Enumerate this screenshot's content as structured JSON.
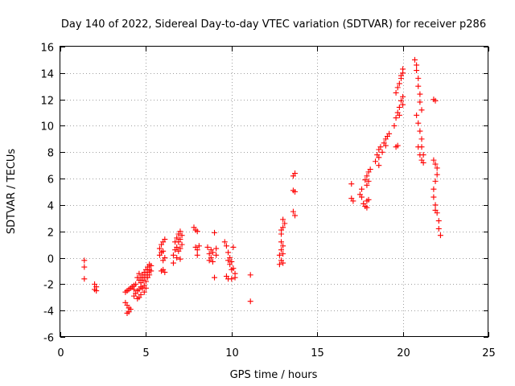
{
  "chart_data": {
    "type": "scatter",
    "title": "Day 140 of 2022, Sidereal Day-to-day VTEC variation (SDTVAR) for receiver p286",
    "xlabel": "GPS time / hours",
    "ylabel": "SDTVAR / TECUs",
    "xlim": [
      0,
      25
    ],
    "ylim": [
      -6,
      16
    ],
    "xticks": [
      "0",
      "5",
      "10",
      "15",
      "20",
      "25"
    ],
    "yticks": [
      "-6",
      "-4",
      "-2",
      "0",
      "2",
      "4",
      "6",
      "8",
      "10",
      "12",
      "14",
      "16"
    ],
    "grid": true,
    "marker": "+",
    "color": "#ff0000",
    "series": [
      {
        "name": "SDTVAR",
        "points": [
          [
            1.4,
            -0.2
          ],
          [
            1.4,
            -0.7
          ],
          [
            1.4,
            -1.6
          ],
          [
            2.0,
            -2.0
          ],
          [
            2.1,
            -2.2
          ],
          [
            2.1,
            -2.5
          ],
          [
            2.0,
            -2.4
          ],
          [
            3.8,
            -2.6
          ],
          [
            3.9,
            -2.5
          ],
          [
            4.0,
            -2.4
          ],
          [
            4.1,
            -2.3
          ],
          [
            4.2,
            -2.2
          ],
          [
            4.3,
            -2.1
          ],
          [
            4.3,
            -2.4
          ],
          [
            4.4,
            -2.0
          ],
          [
            3.8,
            -3.4
          ],
          [
            3.9,
            -3.6
          ],
          [
            4.0,
            -3.8
          ],
          [
            4.0,
            -4.1
          ],
          [
            4.1,
            -3.9
          ],
          [
            3.9,
            -4.2
          ],
          [
            4.3,
            -2.9
          ],
          [
            4.4,
            -2.7
          ],
          [
            4.5,
            -3.1
          ],
          [
            4.5,
            -2.5
          ],
          [
            4.6,
            -2.4
          ],
          [
            4.6,
            -3.0
          ],
          [
            4.7,
            -2.2
          ],
          [
            4.7,
            -2.8
          ],
          [
            4.5,
            -1.5
          ],
          [
            4.6,
            -1.7
          ],
          [
            4.6,
            -1.2
          ],
          [
            4.7,
            -1.5
          ],
          [
            4.7,
            -1.9
          ],
          [
            4.8,
            -1.3
          ],
          [
            4.8,
            -1.7
          ],
          [
            4.8,
            -2.3
          ],
          [
            4.9,
            -1.1
          ],
          [
            4.9,
            -1.5
          ],
          [
            4.9,
            -2.1
          ],
          [
            5.0,
            -0.9
          ],
          [
            5.0,
            -1.3
          ],
          [
            5.0,
            -1.8
          ],
          [
            5.1,
            -0.7
          ],
          [
            5.1,
            -1.1
          ],
          [
            5.1,
            -1.5
          ],
          [
            5.2,
            -0.5
          ],
          [
            5.2,
            -0.9
          ],
          [
            5.2,
            -1.3
          ],
          [
            5.3,
            -0.6
          ],
          [
            5.3,
            -1.0
          ],
          [
            4.9,
            -2.6
          ],
          [
            5.0,
            -2.3
          ],
          [
            5.8,
            0.7
          ],
          [
            5.8,
            0.2
          ],
          [
            5.9,
            1.0
          ],
          [
            5.9,
            0.4
          ],
          [
            6.0,
            1.2
          ],
          [
            6.0,
            0.5
          ],
          [
            6.1,
            1.4
          ],
          [
            6.1,
            0.0
          ],
          [
            6.0,
            -0.9
          ],
          [
            6.1,
            -1.1
          ],
          [
            5.9,
            -1.0
          ],
          [
            6.0,
            -0.2
          ],
          [
            6.6,
            0.2
          ],
          [
            6.6,
            -0.4
          ],
          [
            6.7,
            0.6
          ],
          [
            6.7,
            1.2
          ],
          [
            6.8,
            1.5
          ],
          [
            6.8,
            0.8
          ],
          [
            6.8,
            0.0
          ],
          [
            6.9,
            1.8
          ],
          [
            6.9,
            1.2
          ],
          [
            6.9,
            0.5
          ],
          [
            7.0,
            2.0
          ],
          [
            7.0,
            1.4
          ],
          [
            7.0,
            0.7
          ],
          [
            7.0,
            -0.1
          ],
          [
            7.1,
            1.7
          ],
          [
            7.1,
            1.0
          ],
          [
            7.8,
            2.3
          ],
          [
            7.9,
            2.1
          ],
          [
            8.0,
            2.0
          ],
          [
            7.9,
            0.8
          ],
          [
            8.0,
            0.6
          ],
          [
            8.1,
            0.9
          ],
          [
            8.0,
            0.2
          ],
          [
            8.6,
            0.8
          ],
          [
            8.7,
            0.3
          ],
          [
            8.7,
            -0.2
          ],
          [
            8.8,
            0.6
          ],
          [
            8.8,
            0.0
          ],
          [
            8.9,
            0.4
          ],
          [
            8.9,
            -0.3
          ],
          [
            9.0,
            1.9
          ],
          [
            9.1,
            0.7
          ],
          [
            9.1,
            0.2
          ],
          [
            9.0,
            -1.5
          ],
          [
            9.6,
            1.2
          ],
          [
            9.7,
            0.9
          ],
          [
            9.8,
            0.4
          ],
          [
            9.8,
            -0.2
          ],
          [
            9.9,
            0.0
          ],
          [
            9.9,
            -0.5
          ],
          [
            10.0,
            -0.3
          ],
          [
            10.0,
            -0.9
          ],
          [
            10.1,
            0.8
          ],
          [
            10.1,
            -0.8
          ],
          [
            10.2,
            -1.2
          ],
          [
            9.7,
            -1.4
          ],
          [
            9.8,
            -1.6
          ],
          [
            10.0,
            -1.6
          ],
          [
            10.2,
            -1.5
          ],
          [
            11.1,
            -1.3
          ],
          [
            11.1,
            -3.3
          ],
          [
            12.8,
            -0.5
          ],
          [
            12.8,
            0.2
          ],
          [
            12.9,
            -0.2
          ],
          [
            12.9,
            0.6
          ],
          [
            12.9,
            1.2
          ],
          [
            13.0,
            0.9
          ],
          [
            13.0,
            0.3
          ],
          [
            13.0,
            -0.4
          ],
          [
            12.9,
            1.8
          ],
          [
            13.0,
            2.3
          ],
          [
            13.0,
            2.9
          ],
          [
            13.1,
            2.6
          ],
          [
            12.9,
            2.1
          ],
          [
            13.6,
            6.2
          ],
          [
            13.7,
            6.4
          ],
          [
            13.6,
            5.1
          ],
          [
            13.7,
            5.0
          ],
          [
            13.6,
            3.5
          ],
          [
            13.7,
            3.2
          ],
          [
            17.0,
            5.6
          ],
          [
            17.0,
            4.5
          ],
          [
            17.1,
            4.3
          ],
          [
            17.5,
            4.8
          ],
          [
            17.6,
            4.6
          ],
          [
            17.6,
            5.2
          ],
          [
            17.7,
            4.1
          ],
          [
            17.8,
            3.9
          ],
          [
            17.9,
            3.8
          ],
          [
            17.9,
            4.3
          ],
          [
            17.8,
            5.9
          ],
          [
            17.9,
            6.2
          ],
          [
            17.9,
            5.5
          ],
          [
            18.0,
            6.5
          ],
          [
            18.0,
            5.8
          ],
          [
            18.0,
            4.4
          ],
          [
            18.1,
            6.7
          ],
          [
            18.4,
            7.3
          ],
          [
            18.5,
            7.8
          ],
          [
            18.6,
            8.2
          ],
          [
            18.6,
            7.6
          ],
          [
            18.7,
            8.4
          ],
          [
            18.8,
            8.0
          ],
          [
            18.9,
            8.7
          ],
          [
            19.0,
            8.5
          ],
          [
            19.0,
            9.0
          ],
          [
            19.1,
            9.2
          ],
          [
            19.2,
            9.4
          ],
          [
            18.6,
            7.0
          ],
          [
            19.6,
            8.4
          ],
          [
            19.7,
            8.5
          ],
          [
            19.5,
            10.0
          ],
          [
            19.6,
            10.6
          ],
          [
            19.7,
            11.0
          ],
          [
            19.8,
            11.4
          ],
          [
            19.8,
            10.8
          ],
          [
            19.9,
            11.9
          ],
          [
            20.0,
            11.6
          ],
          [
            20.0,
            12.2
          ],
          [
            19.6,
            12.5
          ],
          [
            19.7,
            12.9
          ],
          [
            19.8,
            13.2
          ],
          [
            19.9,
            13.6
          ],
          [
            20.0,
            14.0
          ],
          [
            20.0,
            14.3
          ],
          [
            19.9,
            13.8
          ],
          [
            20.7,
            15.0
          ],
          [
            20.8,
            14.6
          ],
          [
            20.8,
            14.2
          ],
          [
            20.9,
            13.6
          ],
          [
            20.9,
            13.0
          ],
          [
            21.0,
            12.4
          ],
          [
            21.0,
            11.8
          ],
          [
            21.1,
            11.2
          ],
          [
            20.8,
            10.8
          ],
          [
            20.9,
            10.2
          ],
          [
            21.0,
            9.6
          ],
          [
            21.1,
            9.0
          ],
          [
            21.1,
            8.4
          ],
          [
            21.2,
            7.8
          ],
          [
            21.2,
            7.2
          ],
          [
            20.9,
            8.4
          ],
          [
            21.0,
            7.8
          ],
          [
            21.1,
            7.4
          ],
          [
            21.8,
            12.0
          ],
          [
            21.9,
            11.9
          ],
          [
            21.8,
            7.4
          ],
          [
            21.9,
            7.1
          ],
          [
            22.0,
            6.8
          ],
          [
            22.0,
            6.3
          ],
          [
            21.9,
            5.8
          ],
          [
            21.8,
            5.2
          ],
          [
            21.8,
            4.6
          ],
          [
            21.9,
            4.0
          ],
          [
            22.0,
            3.4
          ],
          [
            22.1,
            2.8
          ],
          [
            22.1,
            2.2
          ],
          [
            22.2,
            1.7
          ],
          [
            21.9,
            3.6
          ]
        ]
      }
    ]
  }
}
